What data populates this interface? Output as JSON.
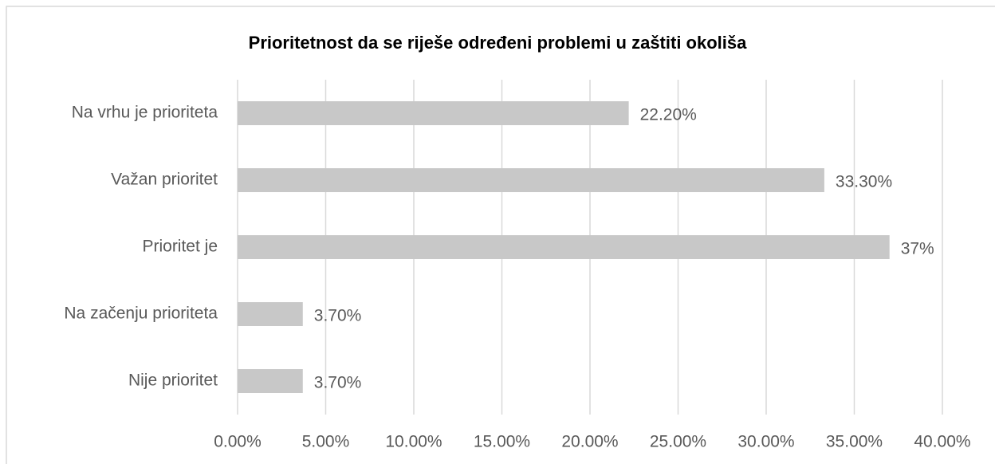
{
  "chart_data": {
    "type": "bar",
    "orientation": "horizontal",
    "title": "Prioritetnost da se riješe određeni problemi u zaštiti okoliša",
    "categories": [
      "Na vrhu je prioriteta",
      "Važan prioritet",
      "Prioritet je",
      "Na začenju prioriteta",
      "Nije prioritet"
    ],
    "values": [
      22.2,
      33.3,
      37,
      3.7,
      3.7
    ],
    "value_labels": [
      "22.20%",
      "33.30%",
      "37%",
      "3.70%",
      "3.70%"
    ],
    "color": "#c8c8c8",
    "xlim": [
      0,
      40
    ],
    "xticks": [
      {
        "value": 0,
        "label": "0.00%"
      },
      {
        "value": 5,
        "label": "5.00%"
      },
      {
        "value": 10,
        "label": "10.00%"
      },
      {
        "value": 15,
        "label": "15.00%"
      },
      {
        "value": 20,
        "label": "20.00%"
      },
      {
        "value": 25,
        "label": "25.00%"
      },
      {
        "value": 30,
        "label": "30.00%"
      },
      {
        "value": 35,
        "label": "35.00%"
      },
      {
        "value": 40,
        "label": "40.00%"
      }
    ],
    "grid": true
  }
}
